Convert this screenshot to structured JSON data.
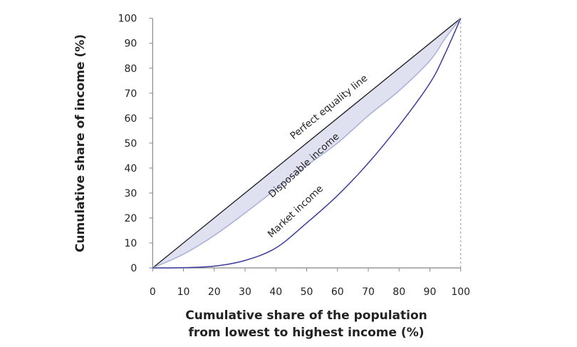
{
  "chart_data": {
    "type": "line",
    "title": "",
    "xlabel": [
      "Cumulative share of the population",
      "from lowest to highest income (%)"
    ],
    "ylabel": "Cumulative share of income (%)",
    "xlim": [
      0,
      100
    ],
    "ylim": [
      0,
      100
    ],
    "xticks": [
      0,
      10,
      20,
      30,
      40,
      50,
      60,
      70,
      80,
      90,
      100
    ],
    "yticks": [
      0,
      10,
      20,
      30,
      40,
      50,
      60,
      70,
      80,
      90,
      100
    ],
    "grid": false,
    "shaded_region": "between perfect equality line and disposable income",
    "colors": {
      "equality": "#1a1a1a",
      "disposable": "#a8afd8",
      "market": "#3a3d9c",
      "fill": "#dfe1f0",
      "axis": "#888888"
    },
    "series": [
      {
        "name": "Perfect equality line",
        "x": [
          0,
          100
        ],
        "y": [
          0,
          100
        ]
      },
      {
        "name": "Disposable income",
        "x": [
          0,
          10,
          20,
          30,
          40,
          50,
          60,
          70,
          80,
          90,
          95,
          100
        ],
        "y": [
          0,
          5.5,
          13,
          22,
          31.5,
          41,
          50,
          61,
          71,
          83,
          92,
          100
        ]
      },
      {
        "name": "Market income",
        "x": [
          0,
          10,
          20,
          30,
          40,
          50,
          60,
          70,
          80,
          90,
          95,
          100
        ],
        "y": [
          0,
          0.1,
          0.7,
          3,
          8,
          18,
          29,
          42,
          57,
          74,
          86,
          100
        ]
      }
    ]
  }
}
